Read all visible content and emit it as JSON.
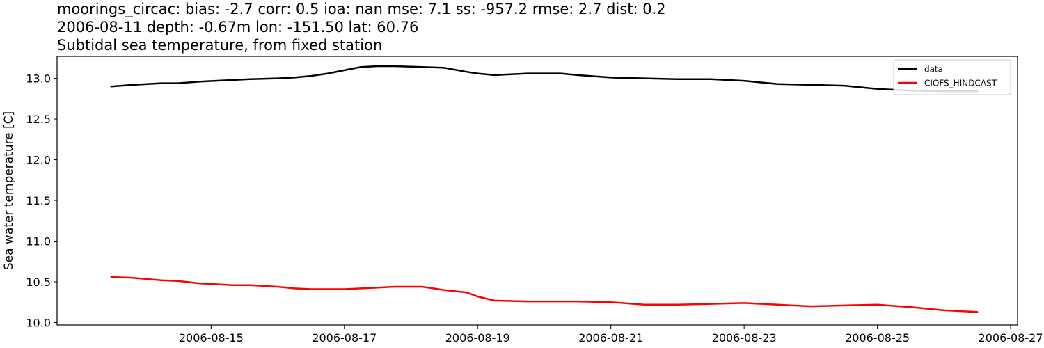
{
  "chart_data": {
    "type": "line",
    "title_lines": [
      "moorings_circac: bias: -2.7  corr: 0.5  ioa: nan  mse: 7.1  ss: -957.2  rmse: 2.7  dist: 0.2",
      "2006-08-11 depth: -0.67m lon: -151.50 lat: 60.76",
      "Subtidal sea temperature, from fixed station"
    ],
    "xlabel": "",
    "ylabel": "Sea water temperature [C]",
    "x_axis_type": "date",
    "xlim": [
      "2006-08-12T16:30",
      "2006-08-27T02:30"
    ],
    "ylim": [
      9.97,
      13.27
    ],
    "x_ticks": [
      "2006-08-15",
      "2006-08-17",
      "2006-08-19",
      "2006-08-21",
      "2006-08-23",
      "2006-08-25",
      "2006-08-27"
    ],
    "y_ticks": [
      10.0,
      10.5,
      11.0,
      11.5,
      12.0,
      12.5,
      13.0
    ],
    "grid": false,
    "legend_position": "top-right",
    "series": [
      {
        "name": "data",
        "color": "#000000",
        "x": [
          "2006-08-13T12:00",
          "2006-08-13T20:00",
          "2006-08-14T06:00",
          "2006-08-14T12:00",
          "2006-08-14T20:00",
          "2006-08-15T08:00",
          "2006-08-15T14:00",
          "2006-08-16T00:00",
          "2006-08-16T06:00",
          "2006-08-16T12:00",
          "2006-08-16T18:00",
          "2006-08-17T00:00",
          "2006-08-17T06:00",
          "2006-08-17T12:00",
          "2006-08-17T18:00",
          "2006-08-18T04:00",
          "2006-08-18T12:00",
          "2006-08-18T20:00",
          "2006-08-19T00:00",
          "2006-08-19T06:00",
          "2006-08-19T18:00",
          "2006-08-20T06:00",
          "2006-08-20T12:00",
          "2006-08-21T00:00",
          "2006-08-21T12:00",
          "2006-08-22T00:00",
          "2006-08-22T12:00",
          "2006-08-23T00:00",
          "2006-08-23T12:00",
          "2006-08-24T00:00",
          "2006-08-24T12:00",
          "2006-08-25T00:00",
          "2006-08-25T12:00",
          "2006-08-26T00:00",
          "2006-08-26T12:00"
        ],
        "y": [
          12.9,
          12.92,
          12.94,
          12.94,
          12.96,
          12.98,
          12.99,
          13.0,
          13.01,
          13.03,
          13.06,
          13.1,
          13.14,
          13.15,
          13.15,
          13.14,
          13.13,
          13.08,
          13.06,
          13.04,
          13.06,
          13.06,
          13.04,
          13.01,
          13.0,
          12.99,
          12.99,
          12.97,
          12.93,
          12.92,
          12.91,
          12.87,
          12.85,
          12.84,
          12.84
        ]
      },
      {
        "name": "CIOFS_HINDCAST",
        "color": "#ff0000",
        "x": [
          "2006-08-13T12:00",
          "2006-08-13T20:00",
          "2006-08-14T06:00",
          "2006-08-14T12:00",
          "2006-08-14T20:00",
          "2006-08-15T08:00",
          "2006-08-15T14:00",
          "2006-08-16T00:00",
          "2006-08-16T06:00",
          "2006-08-16T12:00",
          "2006-08-16T18:00",
          "2006-08-17T00:00",
          "2006-08-17T06:00",
          "2006-08-17T12:00",
          "2006-08-17T18:00",
          "2006-08-18T04:00",
          "2006-08-18T12:00",
          "2006-08-18T20:00",
          "2006-08-19T00:00",
          "2006-08-19T06:00",
          "2006-08-19T18:00",
          "2006-08-20T06:00",
          "2006-08-20T12:00",
          "2006-08-21T00:00",
          "2006-08-21T12:00",
          "2006-08-22T00:00",
          "2006-08-22T12:00",
          "2006-08-23T00:00",
          "2006-08-23T12:00",
          "2006-08-24T00:00",
          "2006-08-24T12:00",
          "2006-08-25T00:00",
          "2006-08-25T12:00",
          "2006-08-26T00:00",
          "2006-08-26T12:00"
        ],
        "y": [
          10.56,
          10.55,
          10.52,
          10.51,
          10.48,
          10.46,
          10.46,
          10.44,
          10.42,
          10.41,
          10.41,
          10.41,
          10.42,
          10.43,
          10.44,
          10.44,
          10.4,
          10.37,
          10.32,
          10.27,
          10.26,
          10.26,
          10.26,
          10.25,
          10.22,
          10.22,
          10.23,
          10.24,
          10.22,
          10.2,
          10.21,
          10.22,
          10.19,
          10.15,
          10.13
        ]
      }
    ]
  }
}
